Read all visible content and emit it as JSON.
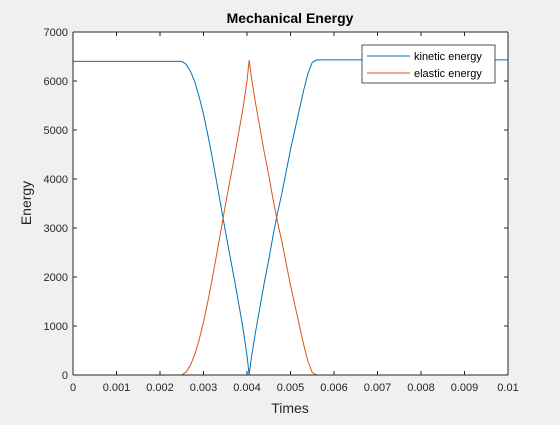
{
  "chart_data": {
    "type": "line",
    "title": "Mechanical Energy",
    "xlabel": "Times",
    "ylabel": "Energy",
    "xlim": [
      0,
      0.01
    ],
    "ylim": [
      0,
      7000
    ],
    "xticks": [
      "0",
      "0.001",
      "0.002",
      "0.003",
      "0.004",
      "0.005",
      "0.006",
      "0.007",
      "0.008",
      "0.009",
      "0.01"
    ],
    "yticks": [
      "0",
      "1000",
      "2000",
      "3000",
      "4000",
      "5000",
      "6000",
      "7000"
    ],
    "grid": false,
    "legend_position": "top-right",
    "series": [
      {
        "name": "kinetic energy",
        "color": "#0072BD",
        "x": [
          0,
          0.0025,
          0.0026,
          0.0027,
          0.0028,
          0.0029,
          0.003,
          0.0031,
          0.0032,
          0.0033,
          0.0034,
          0.0035,
          0.0036,
          0.0037,
          0.0038,
          0.0039,
          0.004,
          0.00405,
          0.0041,
          0.0042,
          0.0043,
          0.0044,
          0.0045,
          0.0046,
          0.0047,
          0.0048,
          0.0049,
          0.005,
          0.0051,
          0.0052,
          0.0053,
          0.0054,
          0.0055,
          0.0056,
          0.006,
          0.008,
          0.01
        ],
        "y": [
          6400,
          6400,
          6340,
          6200,
          5980,
          5680,
          5320,
          4900,
          4440,
          3950,
          3450,
          2950,
          2470,
          2000,
          1500,
          1000,
          400,
          0,
          350,
          900,
          1400,
          1900,
          2350,
          2850,
          3300,
          3700,
          4150,
          4600,
          5000,
          5400,
          5800,
          6150,
          6380,
          6430,
          6430,
          6430,
          6430
        ]
      },
      {
        "name": "elastic energy",
        "color": "#D95319",
        "x": [
          0,
          0.0025,
          0.0026,
          0.0027,
          0.0028,
          0.0029,
          0.003,
          0.0031,
          0.0032,
          0.0033,
          0.0034,
          0.0035,
          0.0036,
          0.0037,
          0.0038,
          0.0039,
          0.004,
          0.00405,
          0.0041,
          0.0042,
          0.0043,
          0.0044,
          0.0045,
          0.0046,
          0.0047,
          0.0048,
          0.0049,
          0.005,
          0.0051,
          0.0052,
          0.0053,
          0.0054,
          0.0055,
          0.0056,
          0.006,
          0.008,
          0.01
        ],
        "y": [
          0,
          0,
          60,
          200,
          420,
          720,
          1080,
          1500,
          1960,
          2450,
          2950,
          3450,
          3930,
          4400,
          4900,
          5400,
          6000,
          6430,
          6080,
          5530,
          5030,
          4530,
          4080,
          3580,
          3130,
          2730,
          2280,
          1830,
          1430,
          1030,
          630,
          280,
          50,
          0,
          0,
          0,
          0
        ]
      }
    ]
  }
}
